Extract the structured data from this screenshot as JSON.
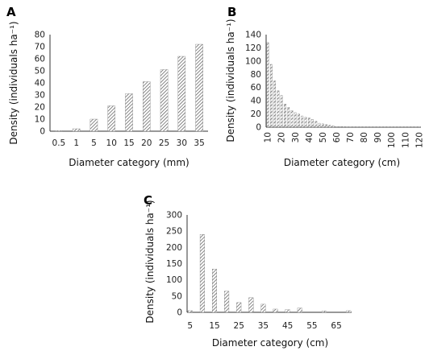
{
  "chart_data": [
    {
      "panel": "A",
      "type": "bar",
      "categories": [
        "0.5",
        "1",
        "5",
        "10",
        "15",
        "20",
        "25",
        "30",
        "35"
      ],
      "values": [
        0.5,
        2,
        10,
        21,
        31,
        41,
        51,
        62,
        72
      ],
      "xlabel": "Diameter category (mm)",
      "ylabel": "Density (individuals ha⁻¹)",
      "ylim": [
        0,
        80
      ],
      "yticks": [
        "0",
        "10",
        "20",
        "30",
        "40",
        "50",
        "60",
        "70",
        "80"
      ],
      "grid": false
    },
    {
      "panel": "B",
      "type": "bar",
      "categories": [
        "10",
        "12.5",
        "15",
        "17.5",
        "20",
        "22.5",
        "25",
        "27.5",
        "30",
        "32.5",
        "35",
        "37.5",
        "40",
        "42.5",
        "45",
        "47.5",
        "50",
        "52.5",
        "55",
        "57.5",
        "60",
        "62.5",
        "65",
        "67.5",
        "70",
        "72.5",
        "75",
        "77.5",
        "80",
        "82.5",
        "85",
        "87.5",
        "90",
        "92.5",
        "95",
        "97.5",
        "100",
        "102.5",
        "105",
        "107.5",
        "110",
        "112.5",
        "115",
        "117.5",
        "120"
      ],
      "values": [
        128,
        95,
        70,
        55,
        48,
        35,
        30,
        25,
        22,
        20,
        17,
        15,
        14,
        12,
        9,
        6,
        5,
        4,
        3,
        2,
        1,
        1,
        1,
        0.5,
        0.5,
        0.5,
        0.5,
        0.5,
        0.5,
        0.5,
        0.5,
        0.5,
        0.5,
        0.5,
        0.5,
        0.5,
        0.5,
        0.5,
        0.5,
        0.5,
        0.5,
        0.5,
        0.5,
        0.5,
        0.5
      ],
      "tick_labels": [
        "10",
        "20",
        "30",
        "40",
        "50",
        "60",
        "70",
        "80",
        "90",
        "100",
        "110",
        "120"
      ],
      "xlabel": "Diameter category (cm)",
      "ylabel": "Density (individuals ha⁻¹)",
      "ylim": [
        0,
        140
      ],
      "yticks": [
        "0",
        "20",
        "40",
        "60",
        "80",
        "100",
        "120",
        "140"
      ],
      "grid": false
    },
    {
      "panel": "C",
      "type": "bar",
      "categories": [
        "5",
        "7.5",
        "10",
        "12.5",
        "15",
        "17.5",
        "20",
        "22.5",
        "25",
        "27.5",
        "30",
        "32.5",
        "35",
        "37.5",
        "40",
        "42.5",
        "45",
        "47.5",
        "50",
        "52.5",
        "55",
        "57.5",
        "60",
        "62.5",
        "65",
        "67.5",
        "70"
      ],
      "values": [
        5,
        0,
        240,
        0,
        133,
        0,
        65,
        0,
        30,
        0,
        45,
        0,
        25,
        0,
        10,
        0,
        8,
        0,
        13,
        0,
        0,
        0,
        4,
        0,
        0,
        0,
        5
      ],
      "tick_labels": [
        "5",
        "15",
        "25",
        "35",
        "45",
        "55",
        "65"
      ],
      "xlabel": "Diameter category (cm)",
      "ylabel": "Density (individuals ha⁻¹)",
      "ylim": [
        0,
        300
      ],
      "yticks": [
        "0",
        "50",
        "100",
        "150",
        "200",
        "250",
        "300"
      ],
      "grid": false
    }
  ]
}
